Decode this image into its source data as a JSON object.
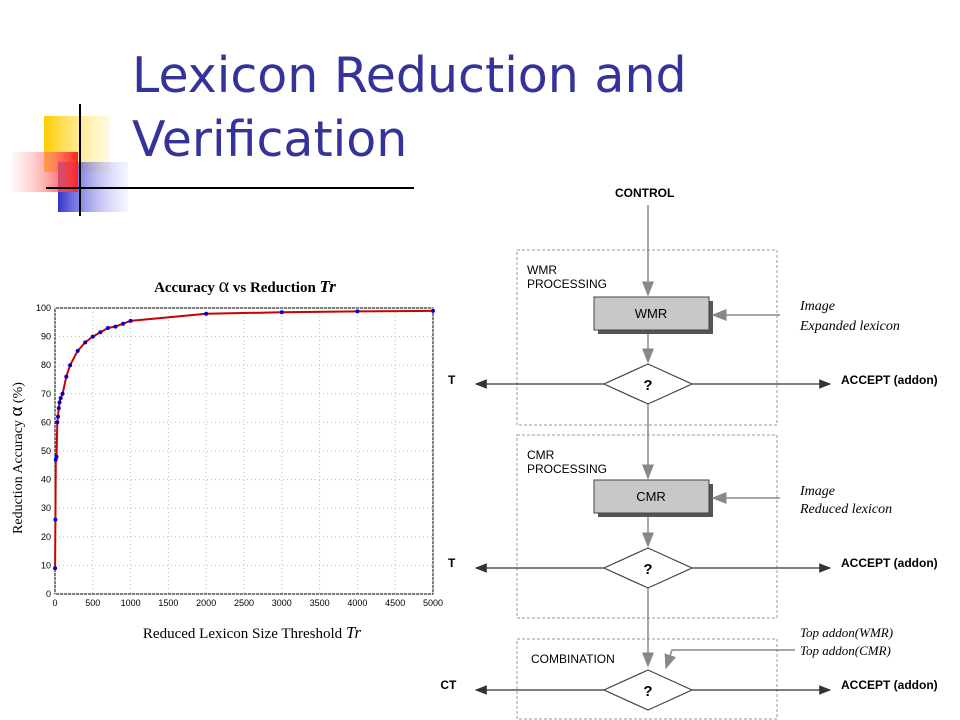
{
  "slide": {
    "title_line1": "Lexicon Reduction and",
    "title_line2": "Verification"
  },
  "chart_data": {
    "type": "line",
    "title_prefix": "Accuracy ",
    "title_alpha": "α",
    "title_mid": " vs Reduction ",
    "title_var": "Tr",
    "xlabel_text": "Reduced Lexicon Size Threshold ",
    "xlabel_var": "Tr",
    "ylabel_text": "Reduction Accuracy ",
    "ylabel_alpha": "α",
    "ylabel_unit": " (%)",
    "xlim": [
      0,
      5000
    ],
    "ylim": [
      0,
      100
    ],
    "xticks": [
      0,
      500,
      1000,
      1500,
      2000,
      2500,
      3000,
      3500,
      4000,
      4500,
      5000
    ],
    "yticks": [
      0,
      10,
      20,
      30,
      40,
      50,
      60,
      70,
      80,
      90,
      100
    ],
    "grid": true,
    "line_color": "#cc0000",
    "marker_color": "#0000cc",
    "series": [
      {
        "x": [
          1,
          5,
          10,
          20,
          30,
          40,
          50,
          60,
          75,
          100,
          150,
          200,
          300,
          400,
          500,
          600,
          700,
          800,
          900,
          1000,
          2000,
          3000,
          4000,
          5000
        ],
        "y": [
          9,
          26,
          47,
          48,
          60,
          62,
          65,
          67,
          68.5,
          70,
          76,
          80,
          85,
          88,
          90,
          91.5,
          93,
          93.5,
          94.5,
          95.5,
          98,
          98.5,
          98.8,
          99
        ]
      }
    ]
  },
  "diagram": {
    "control": "CONTROL",
    "wmr_group_line1": "WMR",
    "wmr_group_line2": "PROCESSING",
    "wmr_box": "WMR",
    "wmr_input_line1": "Image",
    "wmr_input_line2": "Expanded lexicon",
    "decision": "?",
    "accept": "ACCEPT (addon)",
    "reject_partial": "T",
    "cmr_group_line1": "CMR",
    "cmr_group_line2": "PROCESSING",
    "cmr_box": "CMR",
    "cmr_input_line1": "Image",
    "cmr_input_line2": "Reduced lexicon",
    "combination_label": "COMBINATION",
    "top_addon_wmr": "Top addon(WMR)",
    "top_addon_cmr": "Top addon(CMR)",
    "reject": "REJECT"
  },
  "colors": {
    "title": "#333399",
    "deco_yellow": "#ffcc00",
    "deco_blue": "#3333cc",
    "deco_red": "#ff3333",
    "box_fill": "#c8c8c8"
  }
}
